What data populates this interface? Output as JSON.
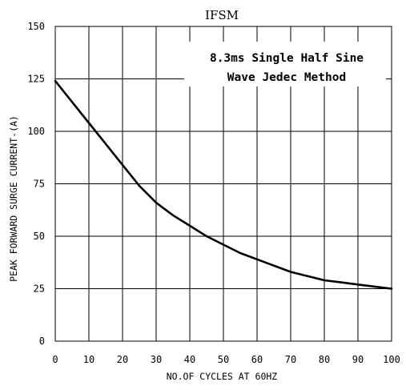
{
  "chart_data": {
    "type": "line",
    "title": "IFSM",
    "xlabel": "NO.OF CYCLES AT 60HZ",
    "ylabel": "PEAK FORWARD SURGE CURRENT-(A)",
    "annotation_lines": [
      "8.3ms Single Half Sine",
      "Wave Jedec Method"
    ],
    "xlim": [
      0,
      100
    ],
    "ylim": [
      0,
      150
    ],
    "x_ticks": [
      0,
      10,
      20,
      30,
      40,
      50,
      60,
      70,
      80,
      90,
      100
    ],
    "y_ticks": [
      0,
      25,
      50,
      75,
      100,
      125,
      150
    ],
    "grid": true,
    "series": [
      {
        "x": [
          0,
          5,
          10,
          15,
          20,
          25,
          30,
          35,
          40,
          45,
          50,
          55,
          60,
          65,
          70,
          75,
          80,
          85,
          90,
          95,
          100
        ],
        "y": [
          124,
          114,
          104,
          94,
          84,
          74,
          66,
          60,
          55,
          50,
          46,
          42,
          39,
          36,
          33,
          31,
          29,
          28,
          27,
          26,
          25
        ]
      }
    ]
  }
}
